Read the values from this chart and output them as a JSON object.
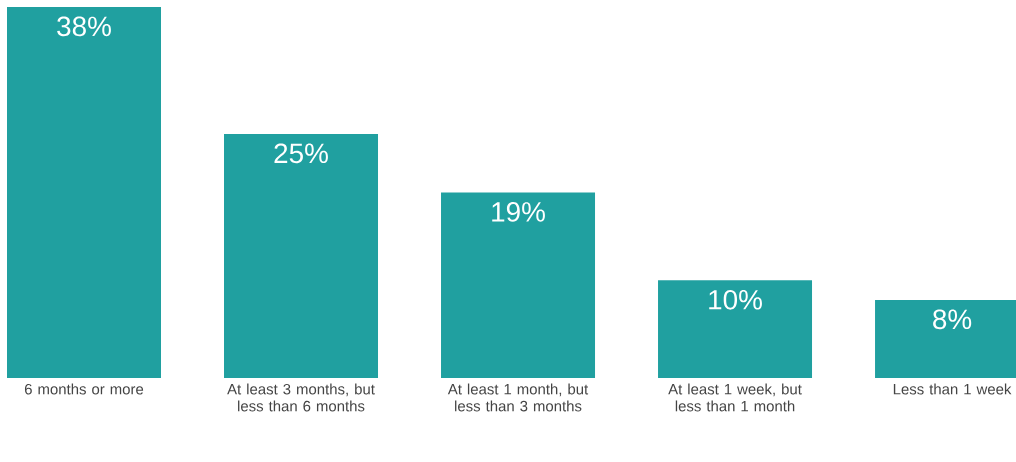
{
  "chart_data": {
    "type": "bar",
    "categories": [
      "6 months or more",
      "At least 3 months, but less than 6 months",
      "At least 1 month, but less than 3 months",
      "At least 1 week, but less than 1 month",
      "Less than 1 week"
    ],
    "values": [
      38,
      25,
      19,
      10,
      8
    ],
    "value_labels": [
      "38%",
      "25%",
      "19%",
      "10%",
      "8%"
    ],
    "color": "#20a0a0"
  }
}
